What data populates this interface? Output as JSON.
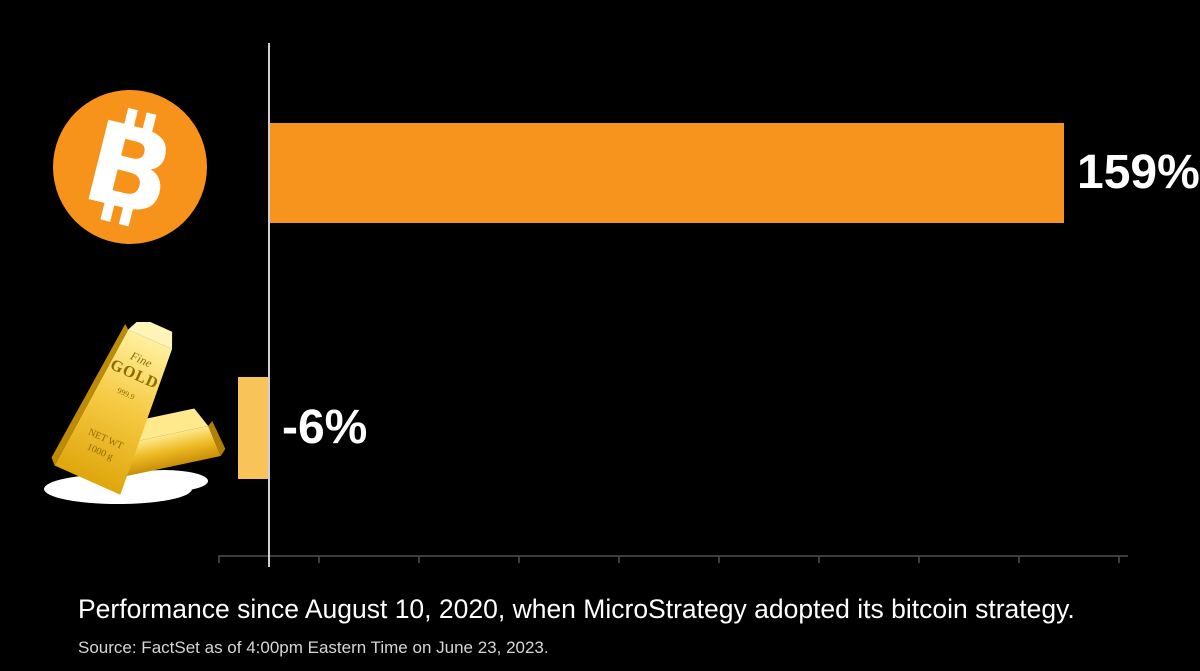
{
  "chart_data": {
    "type": "bar",
    "orientation": "horizontal",
    "title": "",
    "categories": [
      "Bitcoin",
      "Gold"
    ],
    "values": [
      159,
      -6
    ],
    "value_labels": [
      "159%",
      "-6%"
    ],
    "bar_colors": [
      "#F7941E",
      "#F8C45A"
    ],
    "xlim": [
      -10,
      172
    ],
    "baseline": 0,
    "grid": false,
    "legend_position": "none",
    "category_markers": [
      "bitcoin-logo-icon",
      "gold-bars-icon"
    ],
    "caption": "Performance since August 10, 2020, when MicroStrategy adopted its bitcoin strategy.",
    "source": "Source: FactSet as of 4:00pm Eastern Time on June 23, 2023."
  },
  "icons": {
    "bitcoin_logo": {
      "semantic": "bitcoin-logo-icon",
      "glyph": "B",
      "circle_color": "#F7931A",
      "glyph_color": "#FFFFFF"
    },
    "gold_bars": {
      "semantic": "gold-bars-icon",
      "engraving_line1": "Fine",
      "engraving_line2": "GOLD",
      "engraving_line3": "999.9",
      "engraving_line4": "NET WT",
      "engraving_line5": "1000 g"
    }
  },
  "colors": {
    "background": "#000000",
    "y_axis": "#CFCFCF",
    "x_axis": "#3C3C3C",
    "value_label_text": "#FFFFFF",
    "caption_text": "#FFFFFF",
    "source_text": "#D6D6D6"
  }
}
